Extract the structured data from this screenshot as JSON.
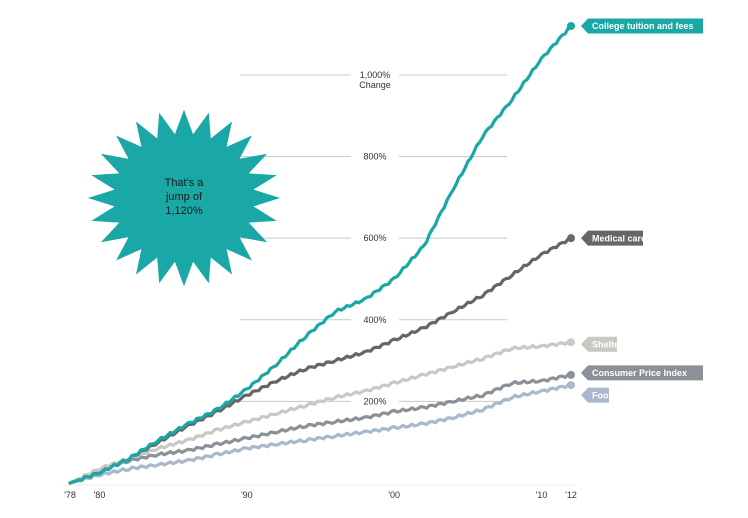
{
  "chart_data": {
    "type": "line",
    "title": "",
    "xlabel": "",
    "ylabel": "",
    "xlim": [
      1978,
      2012
    ],
    "ylim": [
      0,
      1120
    ],
    "y_ticks": [
      {
        "value": 200,
        "label": "200%"
      },
      {
        "value": 400,
        "label": "400%"
      },
      {
        "value": 600,
        "label": "600%"
      },
      {
        "value": 800,
        "label": "800%"
      },
      {
        "value": 1000,
        "label": "1,000%",
        "sublabel": "Change"
      }
    ],
    "x_ticks": [
      {
        "value": 1978,
        "label": "'78"
      },
      {
        "value": 1980,
        "label": "'80"
      },
      {
        "value": 1990,
        "label": "'90"
      },
      {
        "value": 2000,
        "label": "'00"
      },
      {
        "value": 2010,
        "label": "'10"
      },
      {
        "value": 2012,
        "label": "'12"
      }
    ],
    "grid": true,
    "legend": "inline-end-labels",
    "series": [
      {
        "name": "College tuition and fees",
        "color": "#19a8a6",
        "x": [
          1978,
          1980,
          1982,
          1984,
          1986,
          1988,
          1990,
          1992,
          1994,
          1996,
          1998,
          2000,
          2002,
          2004,
          2006,
          2008,
          2010,
          2012
        ],
        "y": [
          0,
          25,
          60,
          105,
          145,
          180,
          230,
          290,
          360,
          420,
          450,
          500,
          580,
          720,
          850,
          940,
          1040,
          1120
        ]
      },
      {
        "name": "Medical care",
        "color": "#666666",
        "x": [
          1978,
          1980,
          1982,
          1984,
          1986,
          1988,
          1990,
          1992,
          1994,
          1996,
          1998,
          2000,
          2002,
          2004,
          2006,
          2008,
          2010,
          2012
        ],
        "y": [
          0,
          25,
          60,
          100,
          140,
          175,
          215,
          250,
          280,
          300,
          320,
          350,
          380,
          420,
          460,
          510,
          560,
          600
        ]
      },
      {
        "name": "Shelter",
        "color": "#c9c8c2",
        "x": [
          1978,
          1980,
          1982,
          1984,
          1986,
          1988,
          1990,
          1992,
          1994,
          1996,
          1998,
          2000,
          2002,
          2004,
          2006,
          2008,
          2010,
          2012
        ],
        "y": [
          0,
          35,
          60,
          85,
          105,
          130,
          150,
          170,
          190,
          210,
          225,
          245,
          265,
          285,
          305,
          330,
          335,
          345
        ]
      },
      {
        "name": "Consumer Price Index",
        "color": "#8a9199",
        "x": [
          1978,
          1980,
          1982,
          1984,
          1986,
          1988,
          1990,
          1992,
          1994,
          1996,
          1998,
          2000,
          2002,
          2004,
          2006,
          2008,
          2010,
          2012
        ],
        "y": [
          0,
          30,
          55,
          70,
          80,
          95,
          110,
          125,
          140,
          150,
          160,
          175,
          185,
          200,
          215,
          245,
          250,
          265
        ]
      },
      {
        "name": "Food",
        "color": "#a9b8ca",
        "x": [
          1978,
          1980,
          1982,
          1984,
          1986,
          1988,
          1990,
          1992,
          1994,
          1996,
          1998,
          2000,
          2002,
          2004,
          2006,
          2008,
          2010,
          2012
        ],
        "y": [
          0,
          20,
          35,
          45,
          55,
          70,
          85,
          95,
          105,
          115,
          125,
          135,
          145,
          160,
          180,
          210,
          225,
          240
        ]
      }
    ],
    "annotation": {
      "lines": [
        "That's a",
        "jump of",
        "1,120%"
      ],
      "color": "#19a8a6"
    }
  }
}
